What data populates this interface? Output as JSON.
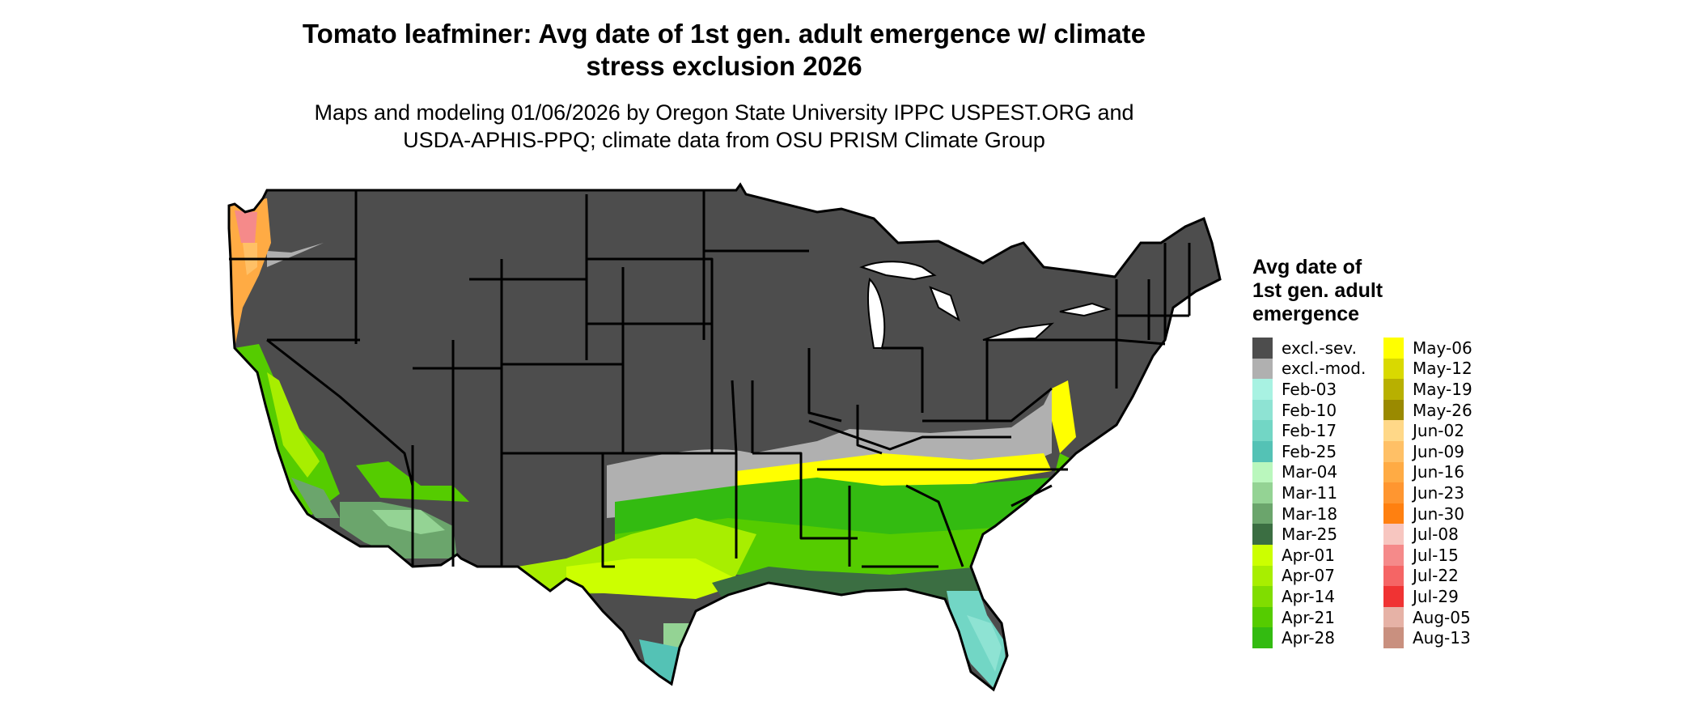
{
  "title_line1": "Tomato leafminer: Avg date of 1st gen. adult emergence w/ climate",
  "title_line2": "stress exclusion 2026",
  "subtitle_line1": "Maps and modeling 01/06/2026 by Oregon State University IPPC USPEST.ORG and",
  "subtitle_line2": "USDA-APHIS-PPQ; climate data from OSU PRISM Climate Group",
  "legend": {
    "title_line1": "Avg date of",
    "title_line2": "1st gen. adult",
    "title_line3": "emergence",
    "items": [
      {
        "label": "excl.-sev.",
        "color": "#4d4d4d"
      },
      {
        "label": "excl.-mod.",
        "color": "#b0b0b0"
      },
      {
        "label": "Feb-03",
        "color": "#a8f2e2"
      },
      {
        "label": "Feb-10",
        "color": "#8ee3d3"
      },
      {
        "label": "Feb-17",
        "color": "#72d6c5"
      },
      {
        "label": "Feb-25",
        "color": "#54c2b5"
      },
      {
        "label": "Mar-04",
        "color": "#baf7bd"
      },
      {
        "label": "Mar-11",
        "color": "#94d394"
      },
      {
        "label": "Mar-18",
        "color": "#6ba56c"
      },
      {
        "label": "Mar-25",
        "color": "#3b6e42"
      },
      {
        "label": "Apr-01",
        "color": "#ccff00"
      },
      {
        "label": "Apr-07",
        "color": "#a8ee00"
      },
      {
        "label": "Apr-14",
        "color": "#80dd00"
      },
      {
        "label": "Apr-21",
        "color": "#55cc00"
      },
      {
        "label": "Apr-28",
        "color": "#33bb11"
      },
      {
        "label": "May-06",
        "color": "#ffff00"
      },
      {
        "label": "May-12",
        "color": "#d9d900"
      },
      {
        "label": "May-19",
        "color": "#b8b000"
      },
      {
        "label": "May-26",
        "color": "#9a8a00"
      },
      {
        "label": "Jun-02",
        "color": "#ffd888"
      },
      {
        "label": "Jun-09",
        "color": "#ffc066"
      },
      {
        "label": "Jun-16",
        "color": "#ffab44"
      },
      {
        "label": "Jun-23",
        "color": "#ff9630"
      },
      {
        "label": "Jun-30",
        "color": "#ff8010"
      },
      {
        "label": "Jul-08",
        "color": "#f7c6c0"
      },
      {
        "label": "Jul-15",
        "color": "#f58a8a"
      },
      {
        "label": "Jul-22",
        "color": "#f56565"
      },
      {
        "label": "Jul-29",
        "color": "#f03333"
      },
      {
        "label": "Aug-05",
        "color": "#e6b2a6"
      },
      {
        "label": "Aug-13",
        "color": "#c9907f"
      }
    ]
  }
}
